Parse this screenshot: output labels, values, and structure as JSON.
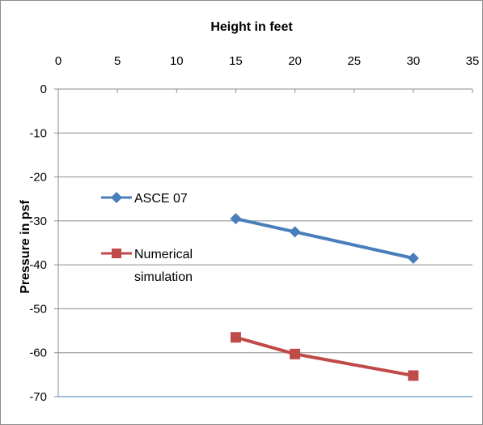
{
  "chart_data": {
    "type": "line",
    "title": "Height in feet",
    "xlabel": "Height in feet",
    "ylabel": "Pressure in psf",
    "x_axis_position": "top",
    "xlim": [
      0,
      35
    ],
    "ylim": [
      -70,
      0
    ],
    "x_ticks": [
      0,
      5,
      10,
      15,
      20,
      25,
      30,
      35
    ],
    "y_ticks": [
      0,
      -10,
      -20,
      -30,
      -40,
      -50,
      -60,
      -70
    ],
    "grid": "horizontal",
    "legend_position": "left-middle",
    "series": [
      {
        "name": "ASCE 07",
        "marker": "diamond",
        "color": "#4a7ebb",
        "x": [
          15,
          20,
          30
        ],
        "y": [
          -29.5,
          -32.5,
          -38.5
        ]
      },
      {
        "name": "Numerical simulation",
        "name_lines": [
          "Numerical",
          "simulation"
        ],
        "marker": "square",
        "color": "#be4b48",
        "x": [
          15,
          20,
          30
        ],
        "y": [
          -56.5,
          -60.3,
          -65.2
        ]
      }
    ]
  }
}
